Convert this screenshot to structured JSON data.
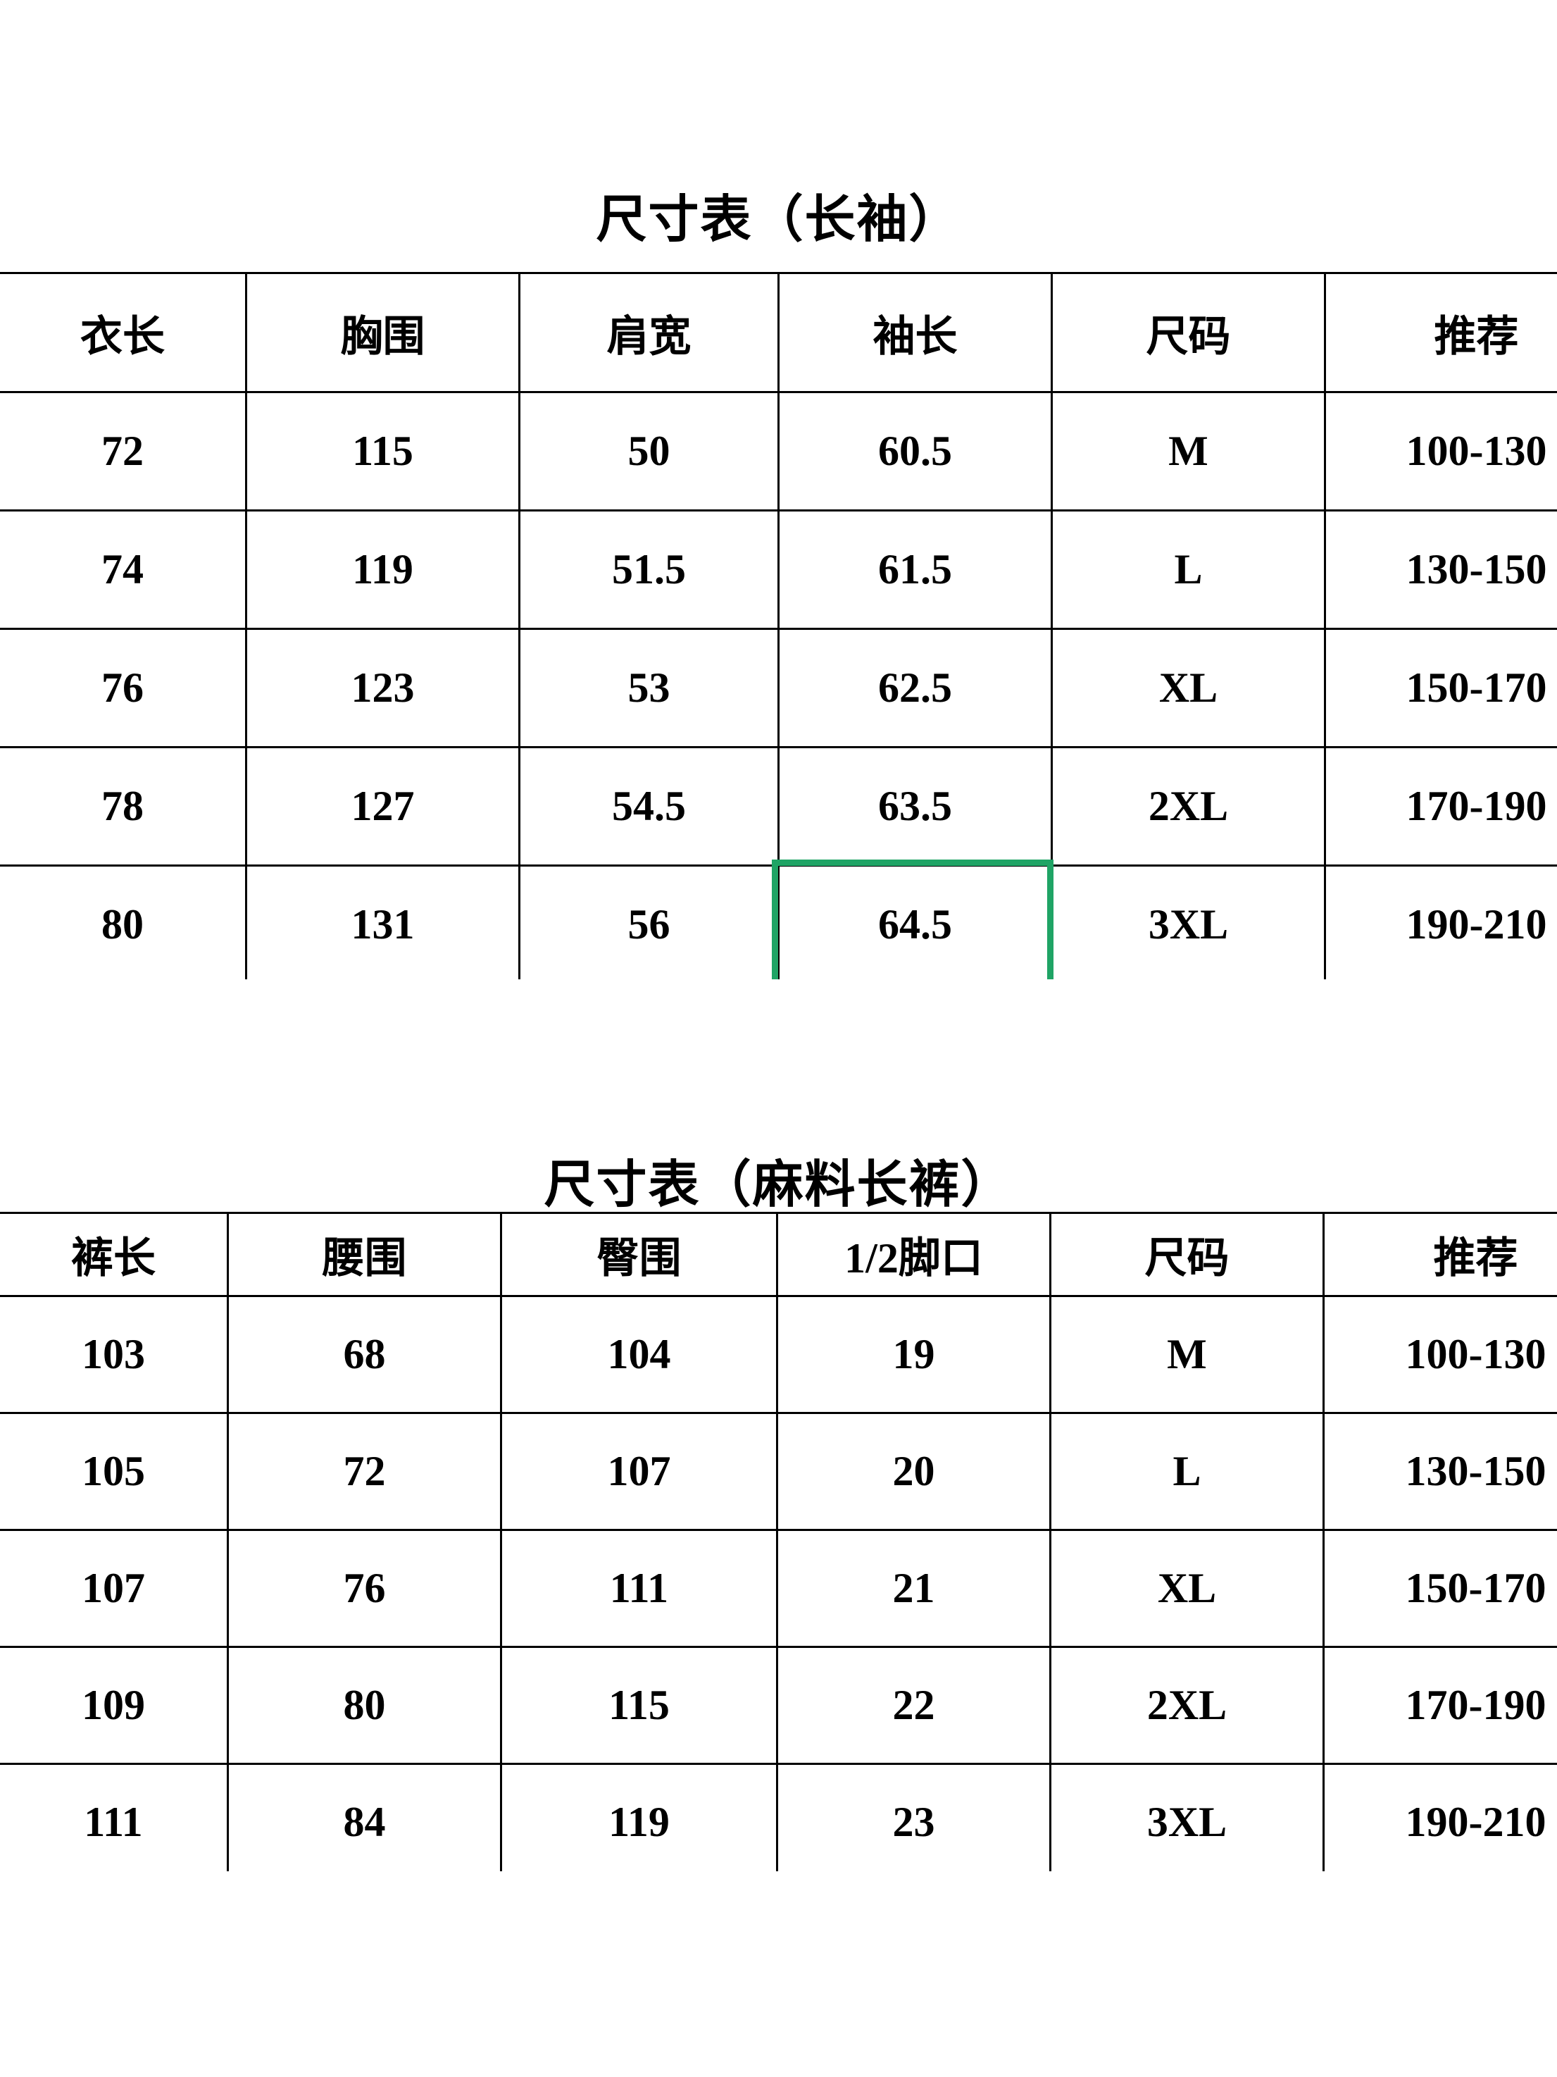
{
  "page": {
    "background": "#ffffff",
    "text_color": "#000000",
    "selection_border_color": "#1fa465"
  },
  "tables": [
    {
      "title": "尺寸表（长袖）",
      "headers": [
        "衣长",
        "胸围",
        "肩宽",
        "袖长",
        "尺码",
        "推荐"
      ],
      "rows": [
        [
          "72",
          "115",
          "50",
          "60.5",
          "M",
          "100-130"
        ],
        [
          "74",
          "119",
          "51.5",
          "61.5",
          "L",
          "130-150"
        ],
        [
          "76",
          "123",
          "53",
          "62.5",
          "XL",
          "150-170"
        ],
        [
          "78",
          "127",
          "54.5",
          "63.5",
          "2XL",
          "170-190"
        ],
        [
          "80",
          "131",
          "56",
          "64.5",
          "3XL",
          "190-210"
        ]
      ]
    },
    {
      "title": "尺寸表（麻料长裤）",
      "headers": [
        "裤长",
        "腰围",
        "臀围",
        "1/2脚口",
        "尺码",
        "推荐"
      ],
      "rows": [
        [
          "103",
          "68",
          "104",
          "19",
          "M",
          "100-130"
        ],
        [
          "105",
          "72",
          "107",
          "20",
          "L",
          "130-150"
        ],
        [
          "107",
          "76",
          "111",
          "21",
          "XL",
          "150-170"
        ],
        [
          "109",
          "80",
          "115",
          "22",
          "2XL",
          "170-190"
        ],
        [
          "111",
          "84",
          "119",
          "23",
          "3XL",
          "190-210"
        ]
      ]
    }
  ],
  "selection": {
    "table_index": 0,
    "row_index": 4,
    "column_index": 3,
    "value": "64.5",
    "border_color": "#1fa465"
  }
}
